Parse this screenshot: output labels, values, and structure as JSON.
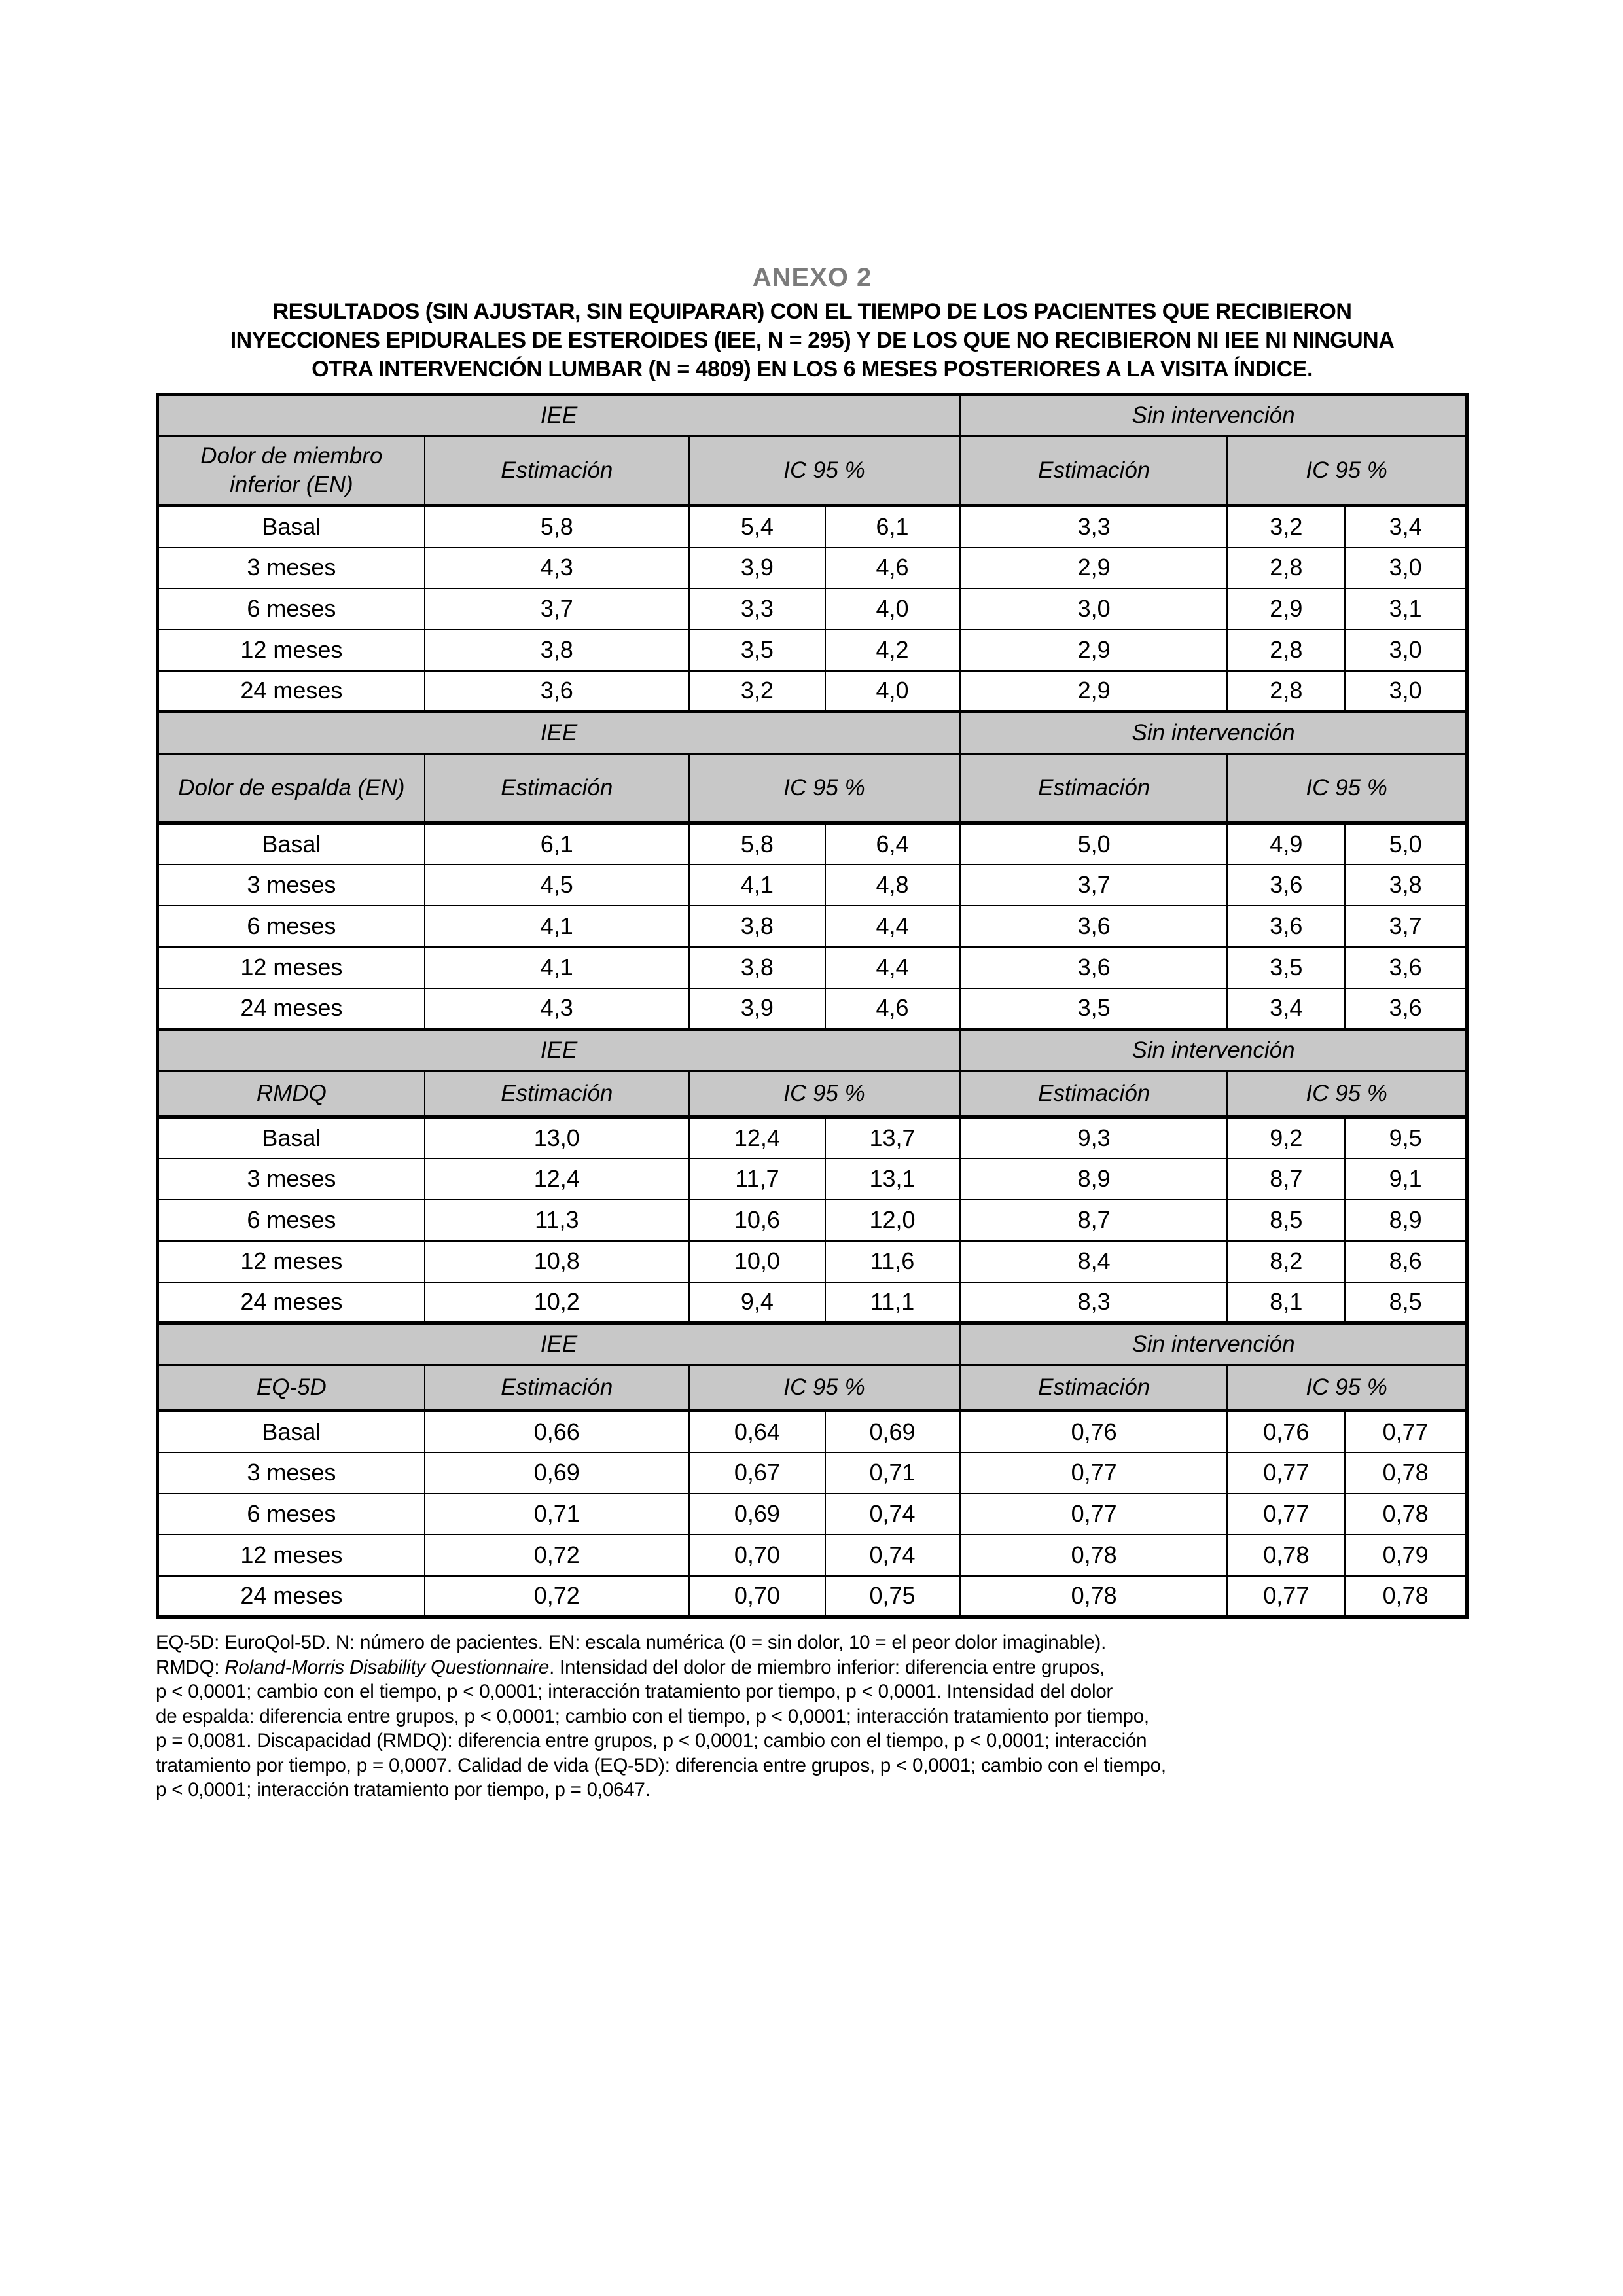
{
  "page": {
    "annex": "ANEXO 2",
    "title_lines": [
      "RESULTADOS (SIN AJUSTAR, SIN EQUIPARAR) CON EL TIEMPO DE LOS PACIENTES QUE RECIBIERON",
      "INYECCIONES EPIDURALES DE ESTEROIDES (IEE, N = 295) Y DE LOS QUE NO RECIBIERON NI IEE NI NINGUNA",
      "OTRA INTERVENCIÓN LUMBAR (N = 4809) EN LOS 6 MESES POSTERIORES A LA VISITA ÍNDICE."
    ]
  },
  "table": {
    "group_iee": "IEE",
    "group_none": "Sin intervención",
    "col_estimate": "Estimación",
    "col_ci": "IC 95 %",
    "sections": [
      {
        "label": "Dolor de miembro inferior (EN)",
        "rows": [
          {
            "time": "Basal",
            "iee_est": "5,8",
            "iee_lo": "5,4",
            "iee_hi": "6,1",
            "no_est": "3,3",
            "no_lo": "3,2",
            "no_hi": "3,4"
          },
          {
            "time": "3 meses",
            "iee_est": "4,3",
            "iee_lo": "3,9",
            "iee_hi": "4,6",
            "no_est": "2,9",
            "no_lo": "2,8",
            "no_hi": "3,0"
          },
          {
            "time": "6 meses",
            "iee_est": "3,7",
            "iee_lo": "3,3",
            "iee_hi": "4,0",
            "no_est": "3,0",
            "no_lo": "2,9",
            "no_hi": "3,1"
          },
          {
            "time": "12 meses",
            "iee_est": "3,8",
            "iee_lo": "3,5",
            "iee_hi": "4,2",
            "no_est": "2,9",
            "no_lo": "2,8",
            "no_hi": "3,0"
          },
          {
            "time": "24 meses",
            "iee_est": "3,6",
            "iee_lo": "3,2",
            "iee_hi": "4,0",
            "no_est": "2,9",
            "no_lo": "2,8",
            "no_hi": "3,0"
          }
        ]
      },
      {
        "label": "Dolor de espalda (EN)",
        "rows": [
          {
            "time": "Basal",
            "iee_est": "6,1",
            "iee_lo": "5,8",
            "iee_hi": "6,4",
            "no_est": "5,0",
            "no_lo": "4,9",
            "no_hi": "5,0"
          },
          {
            "time": "3 meses",
            "iee_est": "4,5",
            "iee_lo": "4,1",
            "iee_hi": "4,8",
            "no_est": "3,7",
            "no_lo": "3,6",
            "no_hi": "3,8"
          },
          {
            "time": "6 meses",
            "iee_est": "4,1",
            "iee_lo": "3,8",
            "iee_hi": "4,4",
            "no_est": "3,6",
            "no_lo": "3,6",
            "no_hi": "3,7"
          },
          {
            "time": "12 meses",
            "iee_est": "4,1",
            "iee_lo": "3,8",
            "iee_hi": "4,4",
            "no_est": "3,6",
            "no_lo": "3,5",
            "no_hi": "3,6"
          },
          {
            "time": "24 meses",
            "iee_est": "4,3",
            "iee_lo": "3,9",
            "iee_hi": "4,6",
            "no_est": "3,5",
            "no_lo": "3,4",
            "no_hi": "3,6"
          }
        ]
      },
      {
        "label": "RMDQ",
        "rows": [
          {
            "time": "Basal",
            "iee_est": "13,0",
            "iee_lo": "12,4",
            "iee_hi": "13,7",
            "no_est": "9,3",
            "no_lo": "9,2",
            "no_hi": "9,5"
          },
          {
            "time": "3 meses",
            "iee_est": "12,4",
            "iee_lo": "11,7",
            "iee_hi": "13,1",
            "no_est": "8,9",
            "no_lo": "8,7",
            "no_hi": "9,1"
          },
          {
            "time": "6 meses",
            "iee_est": "11,3",
            "iee_lo": "10,6",
            "iee_hi": "12,0",
            "no_est": "8,7",
            "no_lo": "8,5",
            "no_hi": "8,9"
          },
          {
            "time": "12 meses",
            "iee_est": "10,8",
            "iee_lo": "10,0",
            "iee_hi": "11,6",
            "no_est": "8,4",
            "no_lo": "8,2",
            "no_hi": "8,6"
          },
          {
            "time": "24 meses",
            "iee_est": "10,2",
            "iee_lo": "9,4",
            "iee_hi": "11,1",
            "no_est": "8,3",
            "no_lo": "8,1",
            "no_hi": "8,5"
          }
        ]
      },
      {
        "label": "EQ-5D",
        "rows": [
          {
            "time": "Basal",
            "iee_est": "0,66",
            "iee_lo": "0,64",
            "iee_hi": "0,69",
            "no_est": "0,76",
            "no_lo": "0,76",
            "no_hi": "0,77"
          },
          {
            "time": "3 meses",
            "iee_est": "0,69",
            "iee_lo": "0,67",
            "iee_hi": "0,71",
            "no_est": "0,77",
            "no_lo": "0,77",
            "no_hi": "0,78"
          },
          {
            "time": "6 meses",
            "iee_est": "0,71",
            "iee_lo": "0,69",
            "iee_hi": "0,74",
            "no_est": "0,77",
            "no_lo": "0,77",
            "no_hi": "0,78"
          },
          {
            "time": "12 meses",
            "iee_est": "0,72",
            "iee_lo": "0,70",
            "iee_hi": "0,74",
            "no_est": "0,78",
            "no_lo": "0,78",
            "no_hi": "0,79"
          },
          {
            "time": "24 meses",
            "iee_est": "0,72",
            "iee_lo": "0,70",
            "iee_hi": "0,75",
            "no_est": "0,78",
            "no_lo": "0,77",
            "no_hi": "0,78"
          }
        ]
      }
    ]
  },
  "footnote": {
    "lines": [
      [
        {
          "t": "EQ-5D: EuroQol-5D. N: número de pacientes. EN: escala numérica (0 = sin dolor, 10 = el peor dolor imaginable)."
        }
      ],
      [
        {
          "t": "RMDQ: "
        },
        {
          "t": "Roland-Morris Disability Questionnaire",
          "i": true
        },
        {
          "t": ". Intensidad del dolor de miembro inferior: diferencia entre grupos,"
        }
      ],
      [
        {
          "t": "p < 0,0001; cambio con el tiempo, p < 0,0001; interacción tratamiento por tiempo, p < 0,0001. Intensidad del dolor"
        }
      ],
      [
        {
          "t": "de espalda: diferencia entre grupos, p < 0,0001; cambio con el tiempo, p < 0,0001; interacción tratamiento por tiempo,"
        }
      ],
      [
        {
          "t": "p = 0,0081. Discapacidad (RMDQ): diferencia entre grupos, p < 0,0001; cambio con el tiempo, p < 0,0001; interacción"
        }
      ],
      [
        {
          "t": "tratamiento por tiempo, p = 0,0007. Calidad de vida (EQ-5D): diferencia entre grupos, p < 0,0001; cambio con el tiempo,"
        }
      ],
      [
        {
          "t": "p < 0,0001; interacción tratamiento por tiempo, p = 0,0647."
        }
      ]
    ]
  },
  "colors": {
    "header_bg": "#c8c8c8",
    "annex_gray": "#7b7b7b",
    "text": "#000000",
    "page_bg": "#ffffff"
  }
}
